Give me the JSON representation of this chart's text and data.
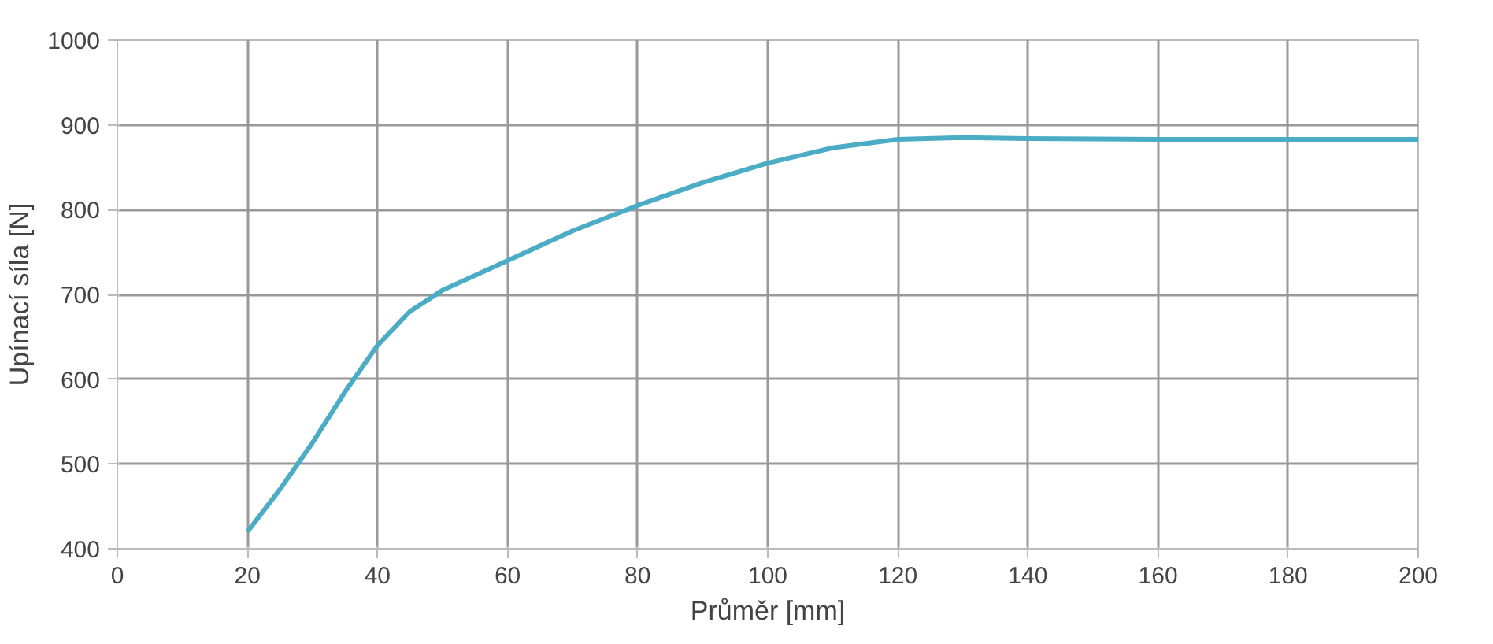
{
  "chart_data": {
    "type": "line",
    "xlabel": "Průměr [mm]",
    "ylabel": "Upínací síla [N]",
    "x": [
      20,
      25,
      30,
      35,
      40,
      45,
      50,
      60,
      70,
      80,
      90,
      100,
      110,
      120,
      130,
      140,
      160,
      180,
      200
    ],
    "series": [
      {
        "color": "#4bacc6",
        "values": [
          420,
          470,
          525,
          585,
          640,
          680,
          705,
          740,
          775,
          805,
          832,
          855,
          873,
          883,
          885,
          884,
          883,
          883,
          883
        ]
      }
    ],
    "xlim": [
      0,
      200
    ],
    "xticks": [
      0,
      20,
      40,
      60,
      80,
      100,
      120,
      140,
      160,
      180,
      200
    ],
    "ylim": [
      400,
      1000
    ],
    "yticks": [
      400,
      500,
      600,
      700,
      800,
      900,
      1000
    ],
    "grid": true,
    "marker": "none",
    "line_style": "solid"
  }
}
